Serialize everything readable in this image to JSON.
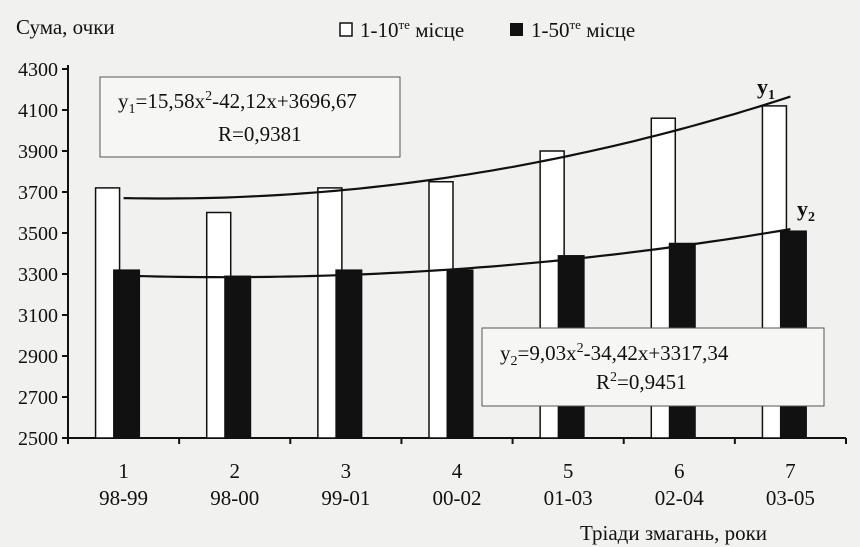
{
  "chart_data": {
    "type": "bar",
    "ylabel": "Сума, очки",
    "xlabel": "Тріади змагань, роки",
    "ylim": [
      2500,
      4300
    ],
    "yticks": [
      2500,
      2700,
      2900,
      3100,
      3300,
      3500,
      3700,
      3900,
      4100,
      4300
    ],
    "categories": [
      {
        "num": "1",
        "years": "98-99"
      },
      {
        "num": "2",
        "years": "98-00"
      },
      {
        "num": "3",
        "years": "99-01"
      },
      {
        "num": "4",
        "years": "00-02"
      },
      {
        "num": "5",
        "years": "01-03"
      },
      {
        "num": "6",
        "years": "02-04"
      },
      {
        "num": "7",
        "years": "03-05"
      }
    ],
    "series": [
      {
        "name": "1-10те місце",
        "color": "#ffffff",
        "values": [
          3720,
          3600,
          3720,
          3750,
          3900,
          4060,
          4120
        ]
      },
      {
        "name": "1-50те місце",
        "color": "#111111",
        "values": [
          3320,
          3290,
          3320,
          3320,
          3390,
          3450,
          3510
        ]
      }
    ],
    "legend": {
      "a_prefix": "1-10",
      "a_sup": "те",
      "a_suffix": " місце",
      "b_prefix": "1-50",
      "b_sup": "те",
      "b_suffix": " місце",
      "position": "top"
    },
    "trend1": {
      "label": "y",
      "sub": "1",
      "formula_a": "=15,58x",
      "formula_b": "-42,12x+3696,67",
      "r": "R=0,9381",
      "coef": [
        15.58,
        -42.12,
        3696.67
      ]
    },
    "trend2": {
      "label": "y",
      "sub": "2",
      "formula_a": "=9,03x",
      "formula_b": "-34,42x+3317,34",
      "r2_a": "R",
      "r2_b": "=0,9451",
      "coef": [
        9.03,
        -34.42,
        3317.34
      ]
    },
    "sup2": "2"
  }
}
